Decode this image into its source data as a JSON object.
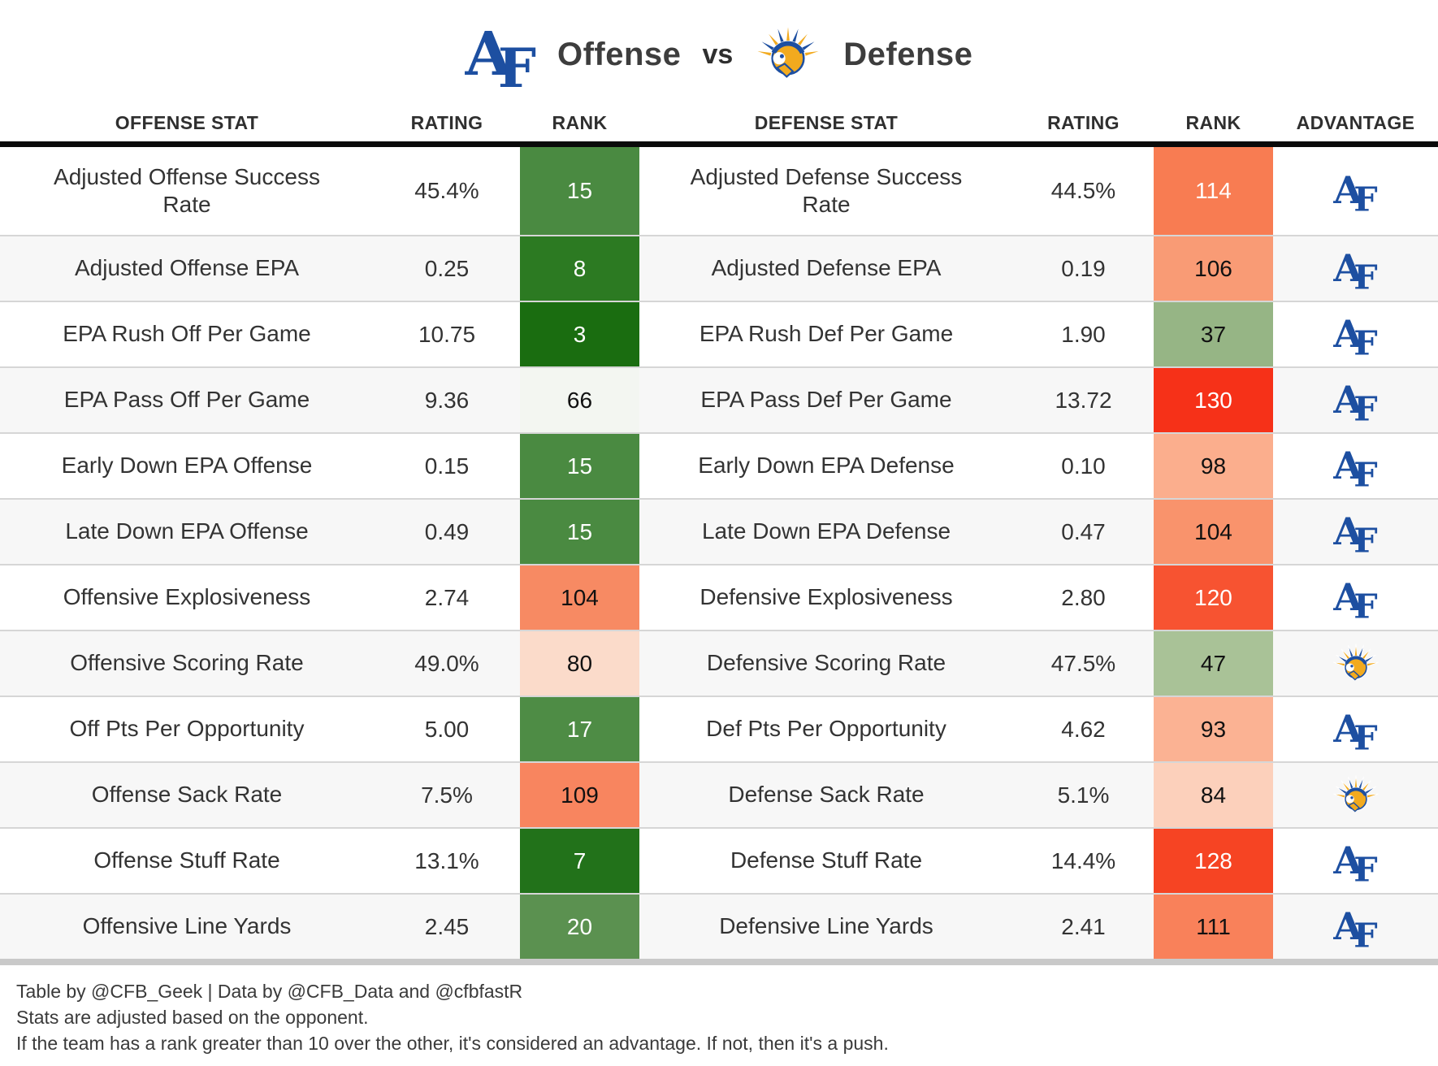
{
  "title": {
    "offense_team": "Air Force",
    "offense_label": "Offense",
    "vs_label": "vs",
    "defense_team": "San Jose State",
    "defense_label": "Defense",
    "af_logo_letter_a": "A",
    "af_logo_letter_f": "F"
  },
  "colors": {
    "af_blue": "#1d4fa1",
    "sjsu_gold": "#f2aa1e",
    "header_rule": "#0a0a0a",
    "bottom_rule": "#c9c9c9",
    "row_alt_bg": "#f7f7f7",
    "body_text": "#333333"
  },
  "chart_data": {
    "type": "table",
    "columns": [
      "OFFENSE STAT",
      "RATING",
      "RANK",
      "DEFENSE STAT",
      "RATING",
      "RANK",
      "ADVANTAGE"
    ],
    "rows": [
      {
        "offense_stat": "Adjusted Offense Success Rate",
        "offense_rating": "45.4%",
        "offense_rank": "15",
        "offense_rank_bg": "#4a8a41",
        "offense_rank_fg": "#ffffff",
        "defense_stat": "Adjusted Defense Success Rate",
        "defense_rating": "44.5%",
        "defense_rank": "114",
        "defense_rank_bg": "#f87c52",
        "defense_rank_fg": "#ffffff",
        "advantage": "air-force"
      },
      {
        "offense_stat": "Adjusted Offense EPA",
        "offense_rating": "0.25",
        "offense_rank": "8",
        "offense_rank_bg": "#2c7a22",
        "offense_rank_fg": "#ffffff",
        "defense_stat": "Adjusted Defense EPA",
        "defense_rating": "0.19",
        "defense_rank": "106",
        "defense_rank_bg": "#f99b75",
        "defense_rank_fg": "#111111",
        "advantage": "air-force"
      },
      {
        "offense_stat": "EPA Rush Off Per Game",
        "offense_rating": "10.75",
        "offense_rank": "3",
        "offense_rank_bg": "#1a6d10",
        "offense_rank_fg": "#ffffff",
        "defense_stat": "EPA Rush Def Per Game",
        "defense_rating": "1.90",
        "defense_rank": "37",
        "defense_rank_bg": "#96b585",
        "defense_rank_fg": "#111111",
        "advantage": "air-force"
      },
      {
        "offense_stat": "EPA Pass Off Per Game",
        "offense_rating": "9.36",
        "offense_rank": "66",
        "offense_rank_bg": "#f3f6f1",
        "offense_rank_fg": "#111111",
        "defense_stat": "EPA Pass Def Per Game",
        "defense_rating": "13.72",
        "defense_rank": "130",
        "defense_rank_bg": "#f63118",
        "defense_rank_fg": "#ffffff",
        "advantage": "air-force"
      },
      {
        "offense_stat": "Early Down EPA Offense",
        "offense_rating": "0.15",
        "offense_rank": "15",
        "offense_rank_bg": "#4a8a41",
        "offense_rank_fg": "#ffffff",
        "defense_stat": "Early Down EPA Defense",
        "defense_rating": "0.10",
        "defense_rank": "98",
        "defense_rank_bg": "#fbae8d",
        "defense_rank_fg": "#111111",
        "advantage": "air-force"
      },
      {
        "offense_stat": "Late Down EPA Offense",
        "offense_rating": "0.49",
        "offense_rank": "15",
        "offense_rank_bg": "#4a8a41",
        "offense_rank_fg": "#ffffff",
        "defense_stat": "Late Down EPA Defense",
        "defense_rating": "0.47",
        "defense_rank": "104",
        "defense_rank_bg": "#f9936c",
        "defense_rank_fg": "#111111",
        "advantage": "air-force"
      },
      {
        "offense_stat": "Offensive Explosiveness",
        "offense_rating": "2.74",
        "offense_rank": "104",
        "offense_rank_bg": "#f78a63",
        "offense_rank_fg": "#111111",
        "defense_stat": "Defensive Explosiveness",
        "defense_rating": "2.80",
        "defense_rank": "120",
        "defense_rank_bg": "#f75331",
        "defense_rank_fg": "#ffffff",
        "advantage": "air-force"
      },
      {
        "offense_stat": "Offensive Scoring Rate",
        "offense_rating": "49.0%",
        "offense_rank": "80",
        "offense_rank_bg": "#fbdbca",
        "offense_rank_fg": "#111111",
        "defense_stat": "Defensive Scoring Rate",
        "defense_rating": "47.5%",
        "defense_rank": "47",
        "defense_rank_bg": "#a9c297",
        "defense_rank_fg": "#111111",
        "advantage": "san-jose-state"
      },
      {
        "offense_stat": "Off Pts Per Opportunity",
        "offense_rating": "5.00",
        "offense_rank": "17",
        "offense_rank_bg": "#4e8c45",
        "offense_rank_fg": "#ffffff",
        "defense_stat": "Def Pts Per Opportunity",
        "defense_rating": "4.62",
        "defense_rank": "93",
        "defense_rank_bg": "#fbb293",
        "defense_rank_fg": "#111111",
        "advantage": "air-force"
      },
      {
        "offense_stat": "Offense Sack Rate",
        "offense_rating": "7.5%",
        "offense_rank": "109",
        "offense_rank_bg": "#f8855f",
        "offense_rank_fg": "#111111",
        "defense_stat": "Defense Sack Rate",
        "defense_rating": "5.1%",
        "defense_rank": "84",
        "defense_rank_bg": "#fcd0bb",
        "defense_rank_fg": "#111111",
        "advantage": "san-jose-state"
      },
      {
        "offense_stat": "Offense Stuff Rate",
        "offense_rating": "13.1%",
        "offense_rank": "7",
        "offense_rank_bg": "#22721a",
        "offense_rank_fg": "#ffffff",
        "defense_stat": "Defense Stuff Rate",
        "defense_rating": "14.4%",
        "defense_rank": "128",
        "defense_rank_bg": "#f64423",
        "defense_rank_fg": "#ffffff",
        "advantage": "air-force"
      },
      {
        "offense_stat": "Offensive Line Yards",
        "offense_rating": "2.45",
        "offense_rank": "20",
        "offense_rank_bg": "#5b9150",
        "offense_rank_fg": "#ffffff",
        "defense_stat": "Defensive Line Yards",
        "defense_rating": "2.41",
        "defense_rank": "111",
        "defense_rank_bg": "#f9815a",
        "defense_rank_fg": "#111111",
        "advantage": "air-force"
      }
    ]
  },
  "footer": {
    "line1": "Table by @CFB_Geek | Data by @CFB_Data and @cfbfastR",
    "line2": "Stats are adjusted based on the opponent.",
    "line3": "If the team has a rank greater than 10 over the other, it's considered an advantage. If not, then it's a push."
  }
}
